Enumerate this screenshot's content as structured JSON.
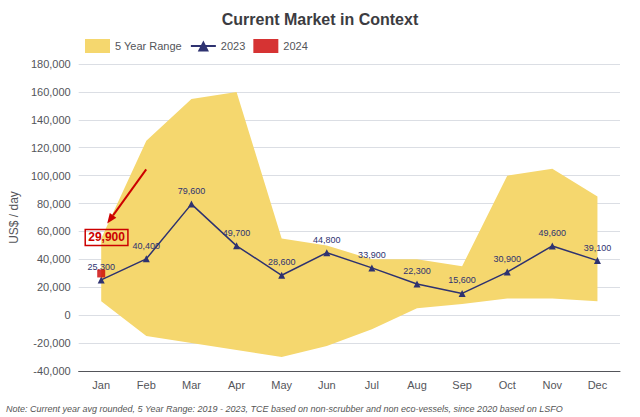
{
  "chart_data": {
    "type": "line",
    "title": "Current Market in Context",
    "ylabel": "US$ / day",
    "note": "Note: Current year avg rounded, 5 Year Range: 2019 - 2023, TCE based on non-scrubber and non eco-vessels, since 2020 based on LSFO",
    "categories": [
      "Jan",
      "Feb",
      "Mar",
      "Apr",
      "May",
      "Jun",
      "Jul",
      "Aug",
      "Sep",
      "Oct",
      "Nov",
      "Dec"
    ],
    "series": [
      {
        "name": "5 Year Range",
        "type": "band",
        "color": "#F5D76E",
        "upper": [
          55000,
          125000,
          155000,
          160000,
          55000,
          50000,
          40000,
          40000,
          35000,
          100000,
          105000,
          85000
        ],
        "lower": [
          10000,
          -15000,
          -20000,
          -25000,
          -30000,
          -22000,
          -10000,
          5000,
          8000,
          12000,
          12000,
          10000
        ]
      },
      {
        "name": "2023",
        "type": "line",
        "color": "#2E3270",
        "marker": "triangle",
        "values": [
          25300,
          40400,
          79600,
          49700,
          28600,
          44800,
          33900,
          22300,
          15600,
          30900,
          49600,
          39100
        ],
        "value_labels": [
          "25,300",
          "40,400",
          "79,600",
          "49,700",
          "28,600",
          "44,800",
          "33,900",
          "22,300",
          "15,600",
          "30,900",
          "49,600",
          "39,100"
        ],
        "data_labels": true
      },
      {
        "name": "2024",
        "type": "scatter",
        "color": "#CC0000",
        "marker": "square",
        "values": [
          29900,
          null,
          null,
          null,
          null,
          null,
          null,
          null,
          null,
          null,
          null,
          null
        ]
      }
    ],
    "annotations": [
      {
        "text": "29,900",
        "x": "Jan",
        "y": 29900,
        "series": "2024"
      }
    ],
    "ylim": [
      -40000,
      180000
    ],
    "yticks": [
      {
        "value": -40000,
        "label": "-40,000"
      },
      {
        "value": -20000,
        "label": "-20,000"
      },
      0,
      {
        "value": 20000,
        "label": "20,000"
      },
      {
        "value": 40000,
        "label": "40,000"
      },
      {
        "value": 60000,
        "label": "60,000"
      },
      {
        "value": 80000,
        "label": "80,000"
      },
      {
        "value": 100000,
        "label": "100,000"
      },
      {
        "value": 120000,
        "label": "120,000"
      },
      {
        "value": 140000,
        "label": "140,000"
      },
      {
        "value": 160000,
        "label": "160,000"
      },
      {
        "value": 180000,
        "label": "180,000"
      }
    ],
    "grid": true,
    "legend": "upper left"
  }
}
